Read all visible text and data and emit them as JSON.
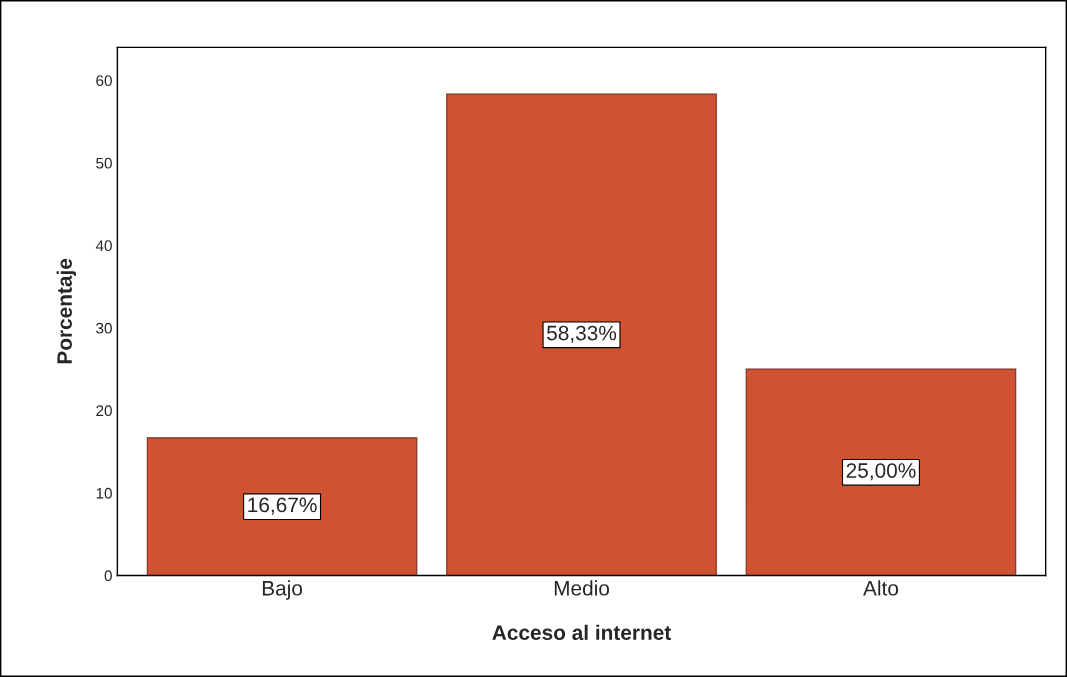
{
  "chart_data": {
    "type": "bar",
    "xlabel": "Acceso al internet",
    "ylabel": "Porcentaje",
    "categories": [
      "Bajo",
      "Medio",
      "Alto"
    ],
    "values": [
      16.67,
      58.33,
      25.0
    ],
    "value_labels": [
      "16,67%",
      "58,33%",
      "25,00%"
    ],
    "color": "#d05233",
    "ylim": [
      0,
      64
    ],
    "yticks": [
      0,
      10,
      20,
      30,
      40,
      50,
      60
    ],
    "grid": false
  }
}
